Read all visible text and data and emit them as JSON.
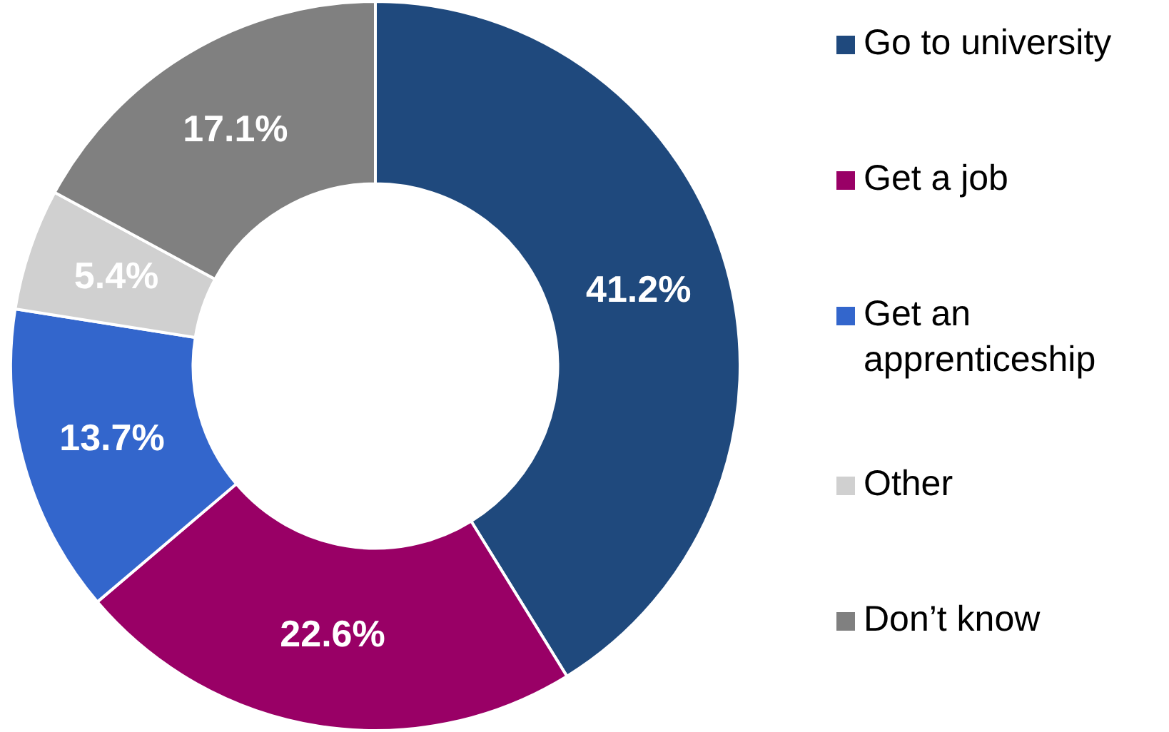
{
  "chart_data": {
    "type": "donut",
    "categories": [
      "Go to university",
      "Get a job",
      "Get an apprenticeship",
      "Other",
      "Don’t know"
    ],
    "values": [
      41.2,
      22.6,
      13.7,
      5.4,
      17.1
    ],
    "colors": [
      "#1f497d",
      "#990066",
      "#3366cc",
      "#d0d0d0",
      "#808080"
    ],
    "value_labels": [
      "41.2%",
      "22.6%",
      "13.7%",
      "5.4%",
      "17.1%"
    ],
    "legend": "right"
  }
}
